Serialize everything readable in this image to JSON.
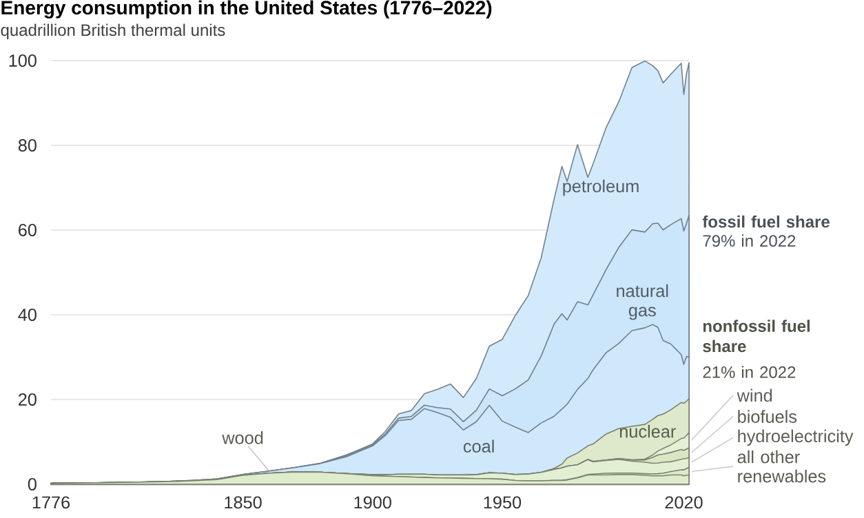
{
  "chart_data": {
    "type": "area",
    "title": "Energy consumption in the United States (1776–2022)",
    "subtitle": "quadrillion British thermal units",
    "stacked": true,
    "grid": "y",
    "xlim": [
      1776,
      2022
    ],
    "ylim": [
      0,
      100
    ],
    "xticks": [
      1776,
      1850,
      1900,
      1950,
      2020
    ],
    "yticks": [
      0,
      20,
      40,
      60,
      80,
      100
    ],
    "x": [
      1776,
      1800,
      1820,
      1830,
      1840,
      1850,
      1860,
      1870,
      1880,
      1890,
      1900,
      1905,
      1910,
      1915,
      1920,
      1925,
      1930,
      1935,
      1940,
      1945,
      1950,
      1955,
      1960,
      1965,
      1970,
      1973,
      1975,
      1979,
      1983,
      1985,
      1990,
      1995,
      2000,
      2005,
      2008,
      2010,
      2012,
      2015,
      2019,
      2020,
      2021,
      2022
    ],
    "series": [
      {
        "name": "wood",
        "color": "#dfeccc",
        "values": [
          0.25,
          0.4,
          0.6,
          0.8,
          1.1,
          2.1,
          2.6,
          2.9,
          2.85,
          2.5,
          2.0,
          1.9,
          1.8,
          1.7,
          1.6,
          1.5,
          1.45,
          1.4,
          1.35,
          1.3,
          1.2,
          0.9,
          0.8,
          0.8,
          0.9,
          0.9,
          1.0,
          1.5,
          2.2,
          2.2,
          2.2,
          2.3,
          2.3,
          2.1,
          2.0,
          2.0,
          2.0,
          2.2,
          2.2,
          2.0,
          2.1,
          2.1
        ]
      },
      {
        "name": "all other renewables",
        "color": "#dbe9c6",
        "values": [
          0,
          0,
          0,
          0,
          0,
          0,
          0,
          0,
          0,
          0,
          0,
          0,
          0,
          0,
          0,
          0,
          0,
          0,
          0,
          0,
          0,
          0,
          0,
          0.01,
          0.01,
          0.05,
          0.07,
          0.08,
          0.1,
          0.2,
          0.4,
          0.35,
          0.35,
          0.4,
          0.45,
          0.5,
          0.6,
          0.8,
          1.2,
          1.4,
          1.6,
          1.9
        ]
      },
      {
        "name": "hydroelectricity",
        "color": "#e3efd2",
        "values": [
          0,
          0,
          0,
          0,
          0,
          0,
          0,
          0,
          0,
          0.02,
          0.25,
          0.35,
          0.55,
          0.65,
          0.75,
          0.7,
          0.75,
          0.8,
          0.9,
          1.4,
          1.4,
          1.4,
          1.6,
          2.0,
          2.6,
          2.9,
          3.2,
          3.0,
          3.5,
          2.9,
          3.0,
          3.2,
          2.8,
          2.7,
          2.5,
          2.5,
          2.6,
          2.3,
          2.5,
          2.6,
          2.4,
          2.3
        ]
      },
      {
        "name": "biofuels",
        "color": "#d8e7c2",
        "values": [
          0,
          0,
          0,
          0,
          0,
          0,
          0,
          0,
          0,
          0,
          0,
          0,
          0,
          0,
          0,
          0,
          0,
          0,
          0,
          0,
          0,
          0,
          0,
          0,
          0,
          0,
          0,
          0,
          0.05,
          0.1,
          0.1,
          0.2,
          0.25,
          0.55,
          1.4,
          1.9,
          1.9,
          2.2,
          2.3,
          2.0,
          2.2,
          2.3
        ]
      },
      {
        "name": "wind",
        "color": "#e6f0d6",
        "values": [
          0,
          0,
          0,
          0,
          0,
          0,
          0,
          0,
          0,
          0,
          0,
          0,
          0,
          0,
          0,
          0,
          0,
          0,
          0,
          0,
          0,
          0,
          0,
          0,
          0,
          0,
          0,
          0,
          0,
          0,
          0.03,
          0.03,
          0.06,
          0.18,
          0.55,
          0.92,
          1.34,
          1.78,
          2.6,
          2.9,
          3.2,
          3.6
        ]
      },
      {
        "name": "nuclear",
        "color": "#dde9ca",
        "values": [
          0,
          0,
          0,
          0,
          0,
          0,
          0,
          0,
          0,
          0,
          0,
          0,
          0,
          0,
          0,
          0,
          0,
          0,
          0,
          0,
          0,
          0,
          0.01,
          0.04,
          0.24,
          0.9,
          1.9,
          2.8,
          3.2,
          4.1,
          6.1,
          7.1,
          7.9,
          8.2,
          8.4,
          8.4,
          8.1,
          8.3,
          8.5,
          8.2,
          8.1,
          8.0
        ]
      },
      {
        "name": "coal",
        "color": "#cfe8fb",
        "values": [
          0,
          0.01,
          0.05,
          0.1,
          0.15,
          0.22,
          0.5,
          1.05,
          2.05,
          4.0,
          6.8,
          9.3,
          12.7,
          13.0,
          15.5,
          14.7,
          13.6,
          10.6,
          12.5,
          15.9,
          12.3,
          11.2,
          9.8,
          11.6,
          12.3,
          13.0,
          12.7,
          15.0,
          15.9,
          17.5,
          19.2,
          20.1,
          22.6,
          22.8,
          22.4,
          20.8,
          17.4,
          15.5,
          11.3,
          9.2,
          10.5,
          9.9
        ]
      },
      {
        "name": "natural gas",
        "color": "#cbe5fa",
        "values": [
          0,
          0,
          0,
          0,
          0,
          0,
          0,
          0,
          0,
          0.26,
          0.25,
          0.37,
          0.54,
          0.67,
          0.82,
          1.2,
          1.97,
          1.97,
          2.7,
          3.9,
          6.0,
          9.0,
          12.4,
          15.8,
          21.8,
          22.5,
          19.9,
          20.7,
          17.4,
          17.7,
          19.6,
          22.7,
          23.8,
          22.6,
          23.8,
          24.6,
          26.1,
          28.2,
          32.1,
          31.5,
          31.4,
          33.4
        ]
      },
      {
        "name": "petroleum",
        "color": "#d3eafc",
        "values": [
          0,
          0,
          0,
          0,
          0,
          0,
          0.01,
          0.01,
          0.1,
          0.16,
          0.23,
          0.6,
          1.0,
          1.4,
          2.7,
          4.3,
          5.9,
          5.7,
          7.5,
          10.1,
          13.3,
          17.3,
          19.9,
          23.2,
          29.5,
          34.8,
          32.7,
          37.1,
          30.1,
          30.9,
          33.5,
          34.4,
          38.3,
          40.4,
          37.3,
          36.0,
          34.7,
          35.5,
          36.7,
          32.2,
          35.3,
          36.0
        ]
      }
    ],
    "annotations": [
      "fossil fuel share",
      "79% in 2022",
      "nonfossil fuel share",
      "21% in 2022"
    ]
  }
}
